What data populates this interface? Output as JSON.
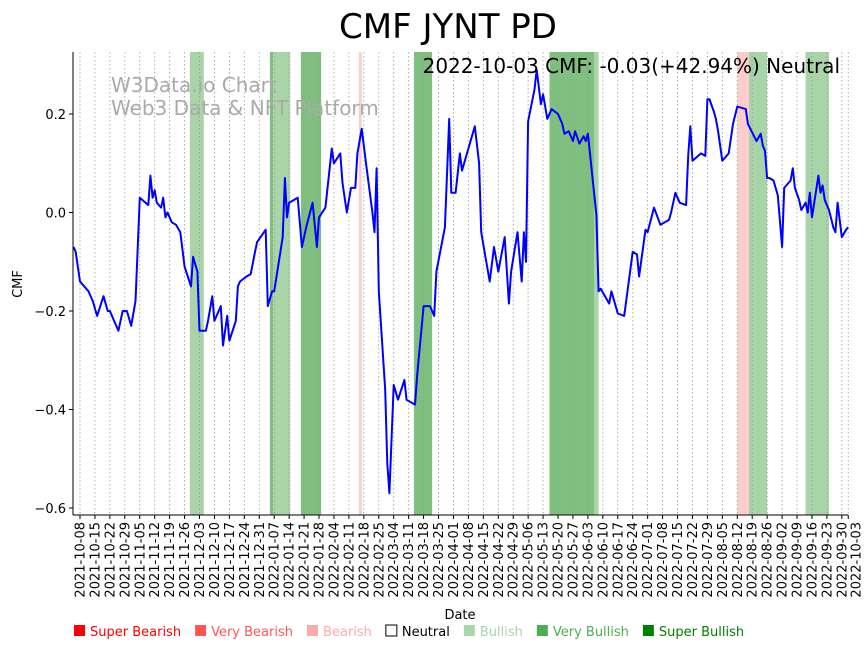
{
  "chart_data": {
    "type": "line",
    "title": "CMF JYNT PD",
    "annotation": "2022-10-03 CMF: -0.03(+42.94%) Neutral",
    "watermark": [
      "W3Data.io Chart",
      "Web3 Data & NFT Platform"
    ],
    "xlabel": "Date",
    "ylabel": "CMF",
    "x_origin": "2021-10-08",
    "x_unit": "days since x_origin",
    "ylim": [
      -0.615,
      0.33
    ],
    "yticks": [
      0.2,
      0.0,
      -0.2,
      -0.4,
      -0.6
    ],
    "ytick_labels": [
      "0.2",
      "0.0",
      "−0.2",
      "−0.4",
      "−0.6"
    ],
    "xticks": [
      "2021-10-08",
      "2021-10-15",
      "2021-10-22",
      "2021-10-29",
      "2021-11-05",
      "2021-11-12",
      "2021-11-19",
      "2021-11-26",
      "2021-12-03",
      "2021-12-10",
      "2021-12-17",
      "2021-12-24",
      "2021-12-31",
      "2022-01-07",
      "2022-01-14",
      "2022-01-21",
      "2022-01-28",
      "2022-02-04",
      "2022-02-11",
      "2022-02-18",
      "2022-02-25",
      "2022-03-04",
      "2022-03-11",
      "2022-03-18",
      "2022-03-25",
      "2022-04-01",
      "2022-04-08",
      "2022-04-15",
      "2022-04-22",
      "2022-04-29",
      "2022-05-06",
      "2022-05-13",
      "2022-05-20",
      "2022-05-27",
      "2022-06-03",
      "2022-06-10",
      "2022-06-17",
      "2022-06-24",
      "2022-07-01",
      "2022-07-08",
      "2022-07-15",
      "2022-07-22",
      "2022-07-29",
      "2022-08-05",
      "2022-08-12",
      "2022-08-19",
      "2022-08-26",
      "2022-09-02",
      "2022-09-09",
      "2022-09-16",
      "2022-09-23",
      "2022-09-30",
      "2022-10-03"
    ],
    "grid": "vertical dotted",
    "series": [
      {
        "name": "CMF",
        "color": "#0000ff",
        "points": [
          [
            -3,
            -0.07
          ],
          [
            -2,
            -0.08
          ],
          [
            0,
            -0.14
          ],
          [
            4,
            -0.16
          ],
          [
            6,
            -0.18
          ],
          [
            8,
            -0.21
          ],
          [
            11,
            -0.17
          ],
          [
            13,
            -0.2
          ],
          [
            14,
            -0.2
          ],
          [
            16,
            -0.22
          ],
          [
            18,
            -0.24
          ],
          [
            20,
            -0.2
          ],
          [
            22,
            -0.2
          ],
          [
            24,
            -0.23
          ],
          [
            26,
            -0.18
          ],
          [
            28,
            0.03
          ],
          [
            32,
            0.015
          ],
          [
            33,
            0.075
          ],
          [
            34,
            0.03
          ],
          [
            35,
            0.045
          ],
          [
            36,
            0.02
          ],
          [
            38,
            0.01
          ],
          [
            39,
            0.03
          ],
          [
            40,
            -0.01
          ],
          [
            41,
            0.0
          ],
          [
            43,
            -0.02
          ],
          [
            45,
            -0.025
          ],
          [
            47,
            -0.04
          ],
          [
            49,
            -0.11
          ],
          [
            52,
            -0.15
          ],
          [
            53,
            -0.09
          ],
          [
            55,
            -0.12
          ],
          [
            56,
            -0.24
          ],
          [
            59,
            -0.24
          ],
          [
            60,
            -0.22
          ],
          [
            62,
            -0.17
          ],
          [
            63,
            -0.22
          ],
          [
            66,
            -0.19
          ],
          [
            67,
            -0.27
          ],
          [
            69,
            -0.21
          ],
          [
            70,
            -0.26
          ],
          [
            73,
            -0.22
          ],
          [
            74,
            -0.15
          ],
          [
            75,
            -0.14
          ],
          [
            78,
            -0.13
          ],
          [
            80,
            -0.125
          ],
          [
            82,
            -0.08
          ],
          [
            83,
            -0.06
          ],
          [
            87,
            -0.035
          ],
          [
            88,
            -0.19
          ],
          [
            90,
            -0.16
          ],
          [
            91,
            -0.16
          ],
          [
            95,
            -0.05
          ],
          [
            96,
            0.07
          ],
          [
            97,
            -0.01
          ],
          [
            98,
            0.02
          ],
          [
            102,
            0.03
          ],
          [
            104,
            -0.07
          ],
          [
            106,
            -0.03
          ],
          [
            109,
            0.02
          ],
          [
            111,
            -0.07
          ],
          [
            112,
            -0.01
          ],
          [
            115,
            0.01
          ],
          [
            118,
            0.13
          ],
          [
            119,
            0.1
          ],
          [
            122,
            0.12
          ],
          [
            123,
            0.06
          ],
          [
            125,
            0.0
          ],
          [
            127,
            0.05
          ],
          [
            129,
            0.05
          ],
          [
            130,
            0.12
          ],
          [
            132,
            0.17
          ],
          [
            134,
            0.1
          ],
          [
            137,
            0.0
          ],
          [
            138,
            -0.04
          ],
          [
            139,
            0.09
          ],
          [
            140,
            -0.16
          ],
          [
            143,
            -0.36
          ],
          [
            144,
            -0.51
          ],
          [
            145,
            -0.57
          ],
          [
            147,
            -0.35
          ],
          [
            149,
            -0.38
          ],
          [
            152,
            -0.34
          ],
          [
            153,
            -0.38
          ],
          [
            157,
            -0.39
          ],
          [
            158,
            -0.33
          ],
          [
            161,
            -0.19
          ],
          [
            164,
            -0.19
          ],
          [
            166,
            -0.21
          ],
          [
            167,
            -0.12
          ],
          [
            171,
            -0.03
          ],
          [
            173,
            0.19
          ],
          [
            174,
            0.04
          ],
          [
            176,
            0.04
          ],
          [
            178,
            0.12
          ],
          [
            179,
            0.085
          ],
          [
            182,
            0.13
          ],
          [
            185,
            0.175
          ],
          [
            187,
            0.1
          ],
          [
            188,
            -0.04
          ],
          [
            192,
            -0.14
          ],
          [
            194,
            -0.07
          ],
          [
            196,
            -0.12
          ],
          [
            199,
            -0.05
          ],
          [
            201,
            -0.185
          ],
          [
            202,
            -0.12
          ],
          [
            205,
            -0.04
          ],
          [
            207,
            -0.14
          ],
          [
            208,
            -0.04
          ],
          [
            209,
            -0.1
          ],
          [
            210,
            0.185
          ],
          [
            213,
            0.25
          ],
          [
            214,
            0.29
          ],
          [
            216,
            0.22
          ],
          [
            217,
            0.24
          ],
          [
            219,
            0.19
          ],
          [
            221,
            0.21
          ],
          [
            224,
            0.2
          ],
          [
            226,
            0.18
          ],
          [
            227,
            0.16
          ],
          [
            229,
            0.165
          ],
          [
            231,
            0.145
          ],
          [
            232,
            0.165
          ],
          [
            234,
            0.14
          ],
          [
            236,
            0.155
          ],
          [
            237,
            0.145
          ],
          [
            238,
            0.16
          ],
          [
            242,
            -0.005
          ],
          [
            243,
            -0.16
          ],
          [
            244,
            -0.155
          ],
          [
            248,
            -0.185
          ],
          [
            249,
            -0.16
          ],
          [
            252,
            -0.205
          ],
          [
            255,
            -0.21
          ],
          [
            259,
            -0.08
          ],
          [
            261,
            -0.085
          ],
          [
            262,
            -0.13
          ],
          [
            265,
            -0.035
          ],
          [
            266,
            -0.04
          ],
          [
            269,
            0.01
          ],
          [
            272,
            -0.025
          ],
          [
            276,
            -0.015
          ],
          [
            277,
            0.0
          ],
          [
            279,
            0.04
          ],
          [
            281,
            0.02
          ],
          [
            284,
            0.015
          ],
          [
            285,
            0.115
          ],
          [
            286,
            0.175
          ],
          [
            287,
            0.105
          ],
          [
            291,
            0.12
          ],
          [
            293,
            0.115
          ],
          [
            294,
            0.23
          ],
          [
            295,
            0.23
          ],
          [
            297,
            0.205
          ],
          [
            298,
            0.19
          ],
          [
            299,
            0.165
          ],
          [
            301,
            0.105
          ],
          [
            304,
            0.12
          ],
          [
            306,
            0.18
          ],
          [
            308,
            0.215
          ],
          [
            312,
            0.21
          ],
          [
            313,
            0.18
          ],
          [
            317,
            0.145
          ],
          [
            319,
            0.16
          ],
          [
            320,
            0.135
          ],
          [
            321,
            0.125
          ],
          [
            322,
            0.07
          ],
          [
            323,
            0.07
          ],
          [
            325,
            0.065
          ],
          [
            327,
            0.035
          ],
          [
            329,
            -0.07
          ],
          [
            330,
            0.05
          ],
          [
            333,
            0.065
          ],
          [
            334,
            0.09
          ],
          [
            335,
            0.05
          ],
          [
            337,
            0.025
          ],
          [
            338,
            0.005
          ],
          [
            340,
            0.02
          ],
          [
            341,
            0.0
          ],
          [
            342,
            0.04
          ],
          [
            343,
            -0.01
          ],
          [
            346,
            0.075
          ],
          [
            347,
            0.04
          ],
          [
            348,
            0.055
          ],
          [
            349,
            0.025
          ],
          [
            351,
            0.005
          ],
          [
            353,
            -0.03
          ],
          [
            354,
            -0.04
          ],
          [
            355,
            0.02
          ],
          [
            357,
            -0.05
          ],
          [
            359,
            -0.035
          ],
          [
            360,
            -0.03
          ]
        ]
      }
    ],
    "signal_bands": [
      {
        "from": 51.5,
        "to": 58,
        "signal": "Bullish"
      },
      {
        "from": 89,
        "to": 90.5,
        "signal": "Very Bullish"
      },
      {
        "from": 90.5,
        "to": 98.5,
        "signal": "Bullish"
      },
      {
        "from": 103.5,
        "to": 113,
        "signal": "Very Bullish"
      },
      {
        "from": 130.7,
        "to": 132,
        "signal": "Bearish"
      },
      {
        "from": 156.5,
        "to": 165,
        "signal": "Very Bullish"
      },
      {
        "from": 220,
        "to": 241,
        "signal": "Very Bullish"
      },
      {
        "from": 241,
        "to": 243,
        "signal": "Bullish"
      },
      {
        "from": 308,
        "to": 313.5,
        "signal": "Bearish"
      },
      {
        "from": 313.5,
        "to": 322,
        "signal": "Bullish"
      },
      {
        "from": 340,
        "to": 351,
        "signal": "Bullish"
      }
    ],
    "legend": [
      {
        "label": "Super Bearish",
        "color": "#ff0000"
      },
      {
        "label": "Very Bearish",
        "color": "#ff5555"
      },
      {
        "label": "Bearish",
        "color": "#ffaaaa"
      },
      {
        "label": "Neutral",
        "color": "#ffffff"
      },
      {
        "label": "Bullish",
        "color": "#a8d8a8"
      },
      {
        "label": "Very Bullish",
        "color": "#4caf50"
      },
      {
        "label": "Super Bullish",
        "color": "#008000"
      }
    ],
    "legend_placement": "bottom",
    "band_colors": {
      "Bearish": "#ffcccc",
      "Bullish": "#a8d4a8",
      "Very Bullish": "#7fbf7f"
    }
  }
}
